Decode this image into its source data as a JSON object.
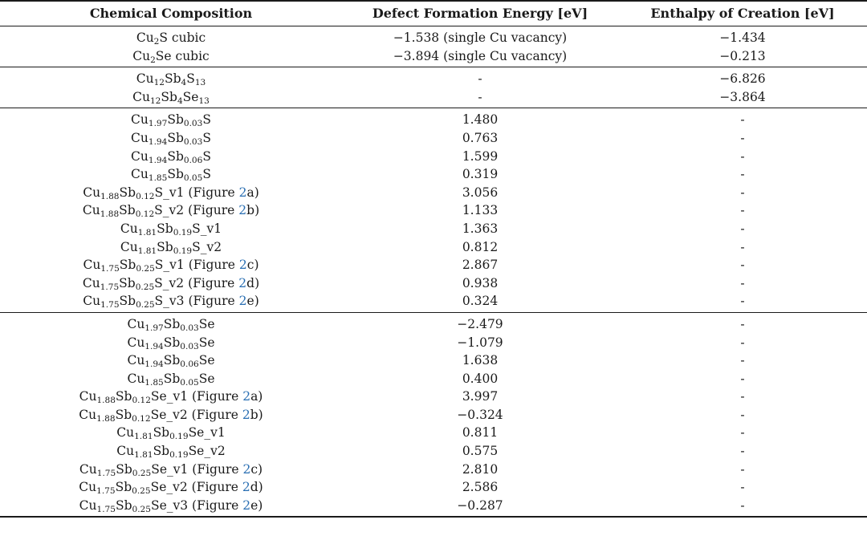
{
  "headers": [
    "Chemical Composition",
    "Defect Formation Energy [eV]",
    "Enthalpy of Creation [eV]"
  ],
  "groups": [
    [
      {
        "composition": [
          {
            "t": "Cu"
          },
          {
            "s": "2"
          },
          {
            "t": "S cubic"
          }
        ],
        "defect": "−1.538 (single Cu vacancy)",
        "enthalpy": "−1.434"
      },
      {
        "composition": [
          {
            "t": "Cu"
          },
          {
            "s": "2"
          },
          {
            "t": "Se cubic"
          }
        ],
        "defect": "−3.894 (single Cu vacancy)",
        "enthalpy": "−0.213"
      }
    ],
    [
      {
        "composition": [
          {
            "t": "Cu"
          },
          {
            "s": "12"
          },
          {
            "t": "Sb"
          },
          {
            "s": "4"
          },
          {
            "t": "S"
          },
          {
            "s": "13"
          }
        ],
        "defect": "-",
        "enthalpy": "−6.826"
      },
      {
        "composition": [
          {
            "t": "Cu"
          },
          {
            "s": "12"
          },
          {
            "t": "Sb"
          },
          {
            "s": "4"
          },
          {
            "t": "Se"
          },
          {
            "s": "13"
          }
        ],
        "defect": "-",
        "enthalpy": "−3.864"
      }
    ],
    [
      {
        "composition": [
          {
            "t": "Cu"
          },
          {
            "s": "1.97"
          },
          {
            "t": "Sb"
          },
          {
            "s": "0.03"
          },
          {
            "t": "S"
          }
        ],
        "defect": "1.480",
        "enthalpy": "-"
      },
      {
        "composition": [
          {
            "t": "Cu"
          },
          {
            "s": "1.94"
          },
          {
            "t": "Sb"
          },
          {
            "s": "0.03"
          },
          {
            "t": "S"
          }
        ],
        "defect": "0.763",
        "enthalpy": "-"
      },
      {
        "composition": [
          {
            "t": "Cu"
          },
          {
            "s": "1.94"
          },
          {
            "t": "Sb"
          },
          {
            "s": "0.06"
          },
          {
            "t": "S"
          }
        ],
        "defect": "1.599",
        "enthalpy": "-"
      },
      {
        "composition": [
          {
            "t": "Cu"
          },
          {
            "s": "1.85"
          },
          {
            "t": "Sb"
          },
          {
            "s": "0.05"
          },
          {
            "t": "S"
          }
        ],
        "defect": "0.319",
        "enthalpy": "-"
      },
      {
        "composition": [
          {
            "t": "Cu"
          },
          {
            "s": "1.88"
          },
          {
            "t": "Sb"
          },
          {
            "s": "0.12"
          },
          {
            "t": "S_v1 (Figure "
          },
          {
            "r": "2"
          },
          {
            "t": "a)"
          }
        ],
        "defect": "3.056",
        "enthalpy": "-"
      },
      {
        "composition": [
          {
            "t": "Cu"
          },
          {
            "s": "1.88"
          },
          {
            "t": "Sb"
          },
          {
            "s": "0.12"
          },
          {
            "t": "S_v2 (Figure "
          },
          {
            "r": "2"
          },
          {
            "t": "b)"
          }
        ],
        "defect": "1.133",
        "enthalpy": "-"
      },
      {
        "composition": [
          {
            "t": "Cu"
          },
          {
            "s": "1.81"
          },
          {
            "t": "Sb"
          },
          {
            "s": "0.19"
          },
          {
            "t": "S_v1"
          }
        ],
        "defect": "1.363",
        "enthalpy": "-"
      },
      {
        "composition": [
          {
            "t": "Cu"
          },
          {
            "s": "1.81"
          },
          {
            "t": "Sb"
          },
          {
            "s": "0.19"
          },
          {
            "t": "S_v2"
          }
        ],
        "defect": "0.812",
        "enthalpy": "-"
      },
      {
        "composition": [
          {
            "t": "Cu"
          },
          {
            "s": "1.75"
          },
          {
            "t": "Sb"
          },
          {
            "s": "0.25"
          },
          {
            "t": "S_v1 (Figure "
          },
          {
            "r": "2"
          },
          {
            "t": "c)"
          }
        ],
        "defect": "2.867",
        "enthalpy": "-"
      },
      {
        "composition": [
          {
            "t": "Cu"
          },
          {
            "s": "1.75"
          },
          {
            "t": "Sb"
          },
          {
            "s": "0.25"
          },
          {
            "t": "S_v2 (Figure "
          },
          {
            "r": "2"
          },
          {
            "t": "d)"
          }
        ],
        "defect": "0.938",
        "enthalpy": "-"
      },
      {
        "composition": [
          {
            "t": "Cu"
          },
          {
            "s": "1.75"
          },
          {
            "t": "Sb"
          },
          {
            "s": "0.25"
          },
          {
            "t": "S_v3 (Figure "
          },
          {
            "r": "2"
          },
          {
            "t": "e)"
          }
        ],
        "defect": "0.324",
        "enthalpy": "-"
      }
    ],
    [
      {
        "composition": [
          {
            "t": "Cu"
          },
          {
            "s": "1.97"
          },
          {
            "t": "Sb"
          },
          {
            "s": "0.03"
          },
          {
            "t": "Se"
          }
        ],
        "defect": "−2.479",
        "enthalpy": "-"
      },
      {
        "composition": [
          {
            "t": "Cu"
          },
          {
            "s": "1.94"
          },
          {
            "t": "Sb"
          },
          {
            "s": "0.03"
          },
          {
            "t": "Se"
          }
        ],
        "defect": "−1.079",
        "enthalpy": "-"
      },
      {
        "composition": [
          {
            "t": "Cu"
          },
          {
            "s": "1.94"
          },
          {
            "t": "Sb"
          },
          {
            "s": "0.06"
          },
          {
            "t": "Se"
          }
        ],
        "defect": "1.638",
        "enthalpy": "-"
      },
      {
        "composition": [
          {
            "t": "Cu"
          },
          {
            "s": "1.85"
          },
          {
            "t": "Sb"
          },
          {
            "s": "0.05"
          },
          {
            "t": "Se"
          }
        ],
        "defect": "0.400",
        "enthalpy": "-"
      },
      {
        "composition": [
          {
            "t": "Cu"
          },
          {
            "s": "1.88"
          },
          {
            "t": "Sb"
          },
          {
            "s": "0.12"
          },
          {
            "t": "Se_v1 (Figure "
          },
          {
            "r": "2"
          },
          {
            "t": "a)"
          }
        ],
        "defect": "3.997",
        "enthalpy": "-"
      },
      {
        "composition": [
          {
            "t": "Cu"
          },
          {
            "s": "1.88"
          },
          {
            "t": "Sb"
          },
          {
            "s": "0.12"
          },
          {
            "t": "Se_v2 (Figure "
          },
          {
            "r": "2"
          },
          {
            "t": "b)"
          }
        ],
        "defect": "−0.324",
        "enthalpy": "-"
      },
      {
        "composition": [
          {
            "t": "Cu"
          },
          {
            "s": "1.81"
          },
          {
            "t": "Sb"
          },
          {
            "s": "0.19"
          },
          {
            "t": "Se_v1"
          }
        ],
        "defect": "0.811",
        "enthalpy": "-"
      },
      {
        "composition": [
          {
            "t": "Cu"
          },
          {
            "s": "1.81"
          },
          {
            "t": "Sb"
          },
          {
            "s": "0.19"
          },
          {
            "t": "Se_v2"
          }
        ],
        "defect": "0.575",
        "enthalpy": "-"
      },
      {
        "composition": [
          {
            "t": "Cu"
          },
          {
            "s": "1.75"
          },
          {
            "t": "Sb"
          },
          {
            "s": "0.25"
          },
          {
            "t": "Se_v1 (Figure "
          },
          {
            "r": "2"
          },
          {
            "t": "c)"
          }
        ],
        "defect": "2.810",
        "enthalpy": "-"
      },
      {
        "composition": [
          {
            "t": "Cu"
          },
          {
            "s": "1.75"
          },
          {
            "t": "Sb"
          },
          {
            "s": "0.25"
          },
          {
            "t": "Se_v2 (Figure "
          },
          {
            "r": "2"
          },
          {
            "t": "d)"
          }
        ],
        "defect": "2.586",
        "enthalpy": "-"
      },
      {
        "composition": [
          {
            "t": "Cu"
          },
          {
            "s": "1.75"
          },
          {
            "t": "Sb"
          },
          {
            "s": "0.25"
          },
          {
            "t": "Se_v3 (Figure "
          },
          {
            "r": "2"
          },
          {
            "t": "e)"
          }
        ],
        "defect": "−0.287",
        "enthalpy": "-"
      }
    ]
  ],
  "colors": {
    "text": "#1a1a1a",
    "figure_ref": "#2a6fb3",
    "rule": "#1a1a1a"
  }
}
